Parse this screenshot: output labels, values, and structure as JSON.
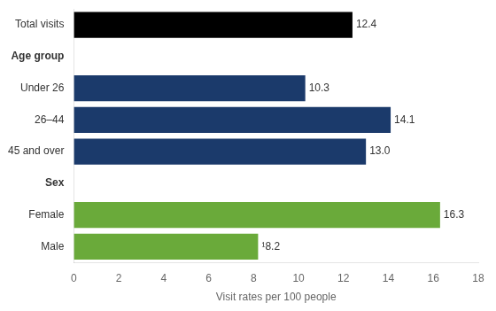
{
  "chart_data": {
    "type": "bar",
    "orientation": "horizontal",
    "categories": [
      "Total visits",
      "Age group",
      "Under 26",
      "26–44",
      "45 and over",
      "Sex",
      "Female",
      "Male"
    ],
    "values": [
      12.4,
      null,
      10.3,
      14.1,
      13.0,
      null,
      16.3,
      8.2
    ],
    "value_labels": [
      "12.4",
      null,
      "10.3",
      "14.1",
      "13.0",
      null,
      "16.3",
      "¹8.2"
    ],
    "colors": [
      "#000000",
      null,
      "#1b3a6b",
      "#1b3a6b",
      "#1b3a6b",
      null,
      "#6aaa3a",
      "#6aaa3a"
    ],
    "data_labels": true,
    "xlabel": "Visit rates per 100 people",
    "xlim": [
      0,
      18
    ],
    "xticks": [
      0,
      2,
      4,
      6,
      8,
      10,
      12,
      14,
      16,
      18
    ],
    "grid": false
  }
}
